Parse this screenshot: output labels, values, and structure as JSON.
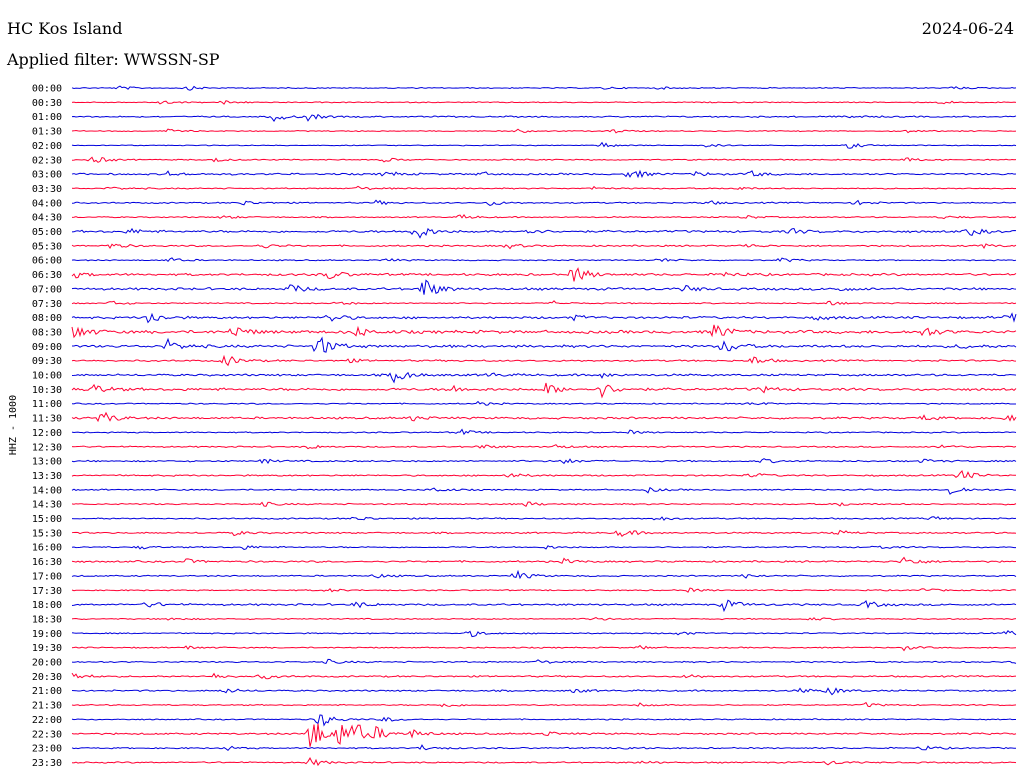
{
  "header": {
    "station": "HC Kos Island",
    "date": "2024-06-24",
    "filter": "Applied filter: WWSSN-SP"
  },
  "chart_data": {
    "type": "line",
    "ylabel": "HHZ - 1000",
    "colors": {
      "even": "#0000dd",
      "odd": "#ff0033"
    },
    "traces": [
      {
        "label": "00:00",
        "noise": 0.6,
        "events": [
          [
            0.05,
            2
          ],
          [
            0.12,
            2.5
          ],
          [
            0.56,
            1.5
          ],
          [
            0.62,
            1.2
          ],
          [
            0.93,
            2
          ]
        ]
      },
      {
        "label": "00:30",
        "noise": 0.6,
        "events": [
          [
            0.09,
            2.5
          ],
          [
            0.16,
            2
          ],
          [
            0.92,
            2
          ]
        ]
      },
      {
        "label": "01:00",
        "noise": 0.8,
        "events": [
          [
            0.21,
            6
          ],
          [
            0.25,
            3.5
          ],
          [
            0.82,
            2
          ]
        ]
      },
      {
        "label": "01:30",
        "noise": 0.6,
        "events": [
          [
            0.1,
            2
          ],
          [
            0.47,
            2
          ],
          [
            0.57,
            2.5
          ],
          [
            0.88,
            2
          ]
        ]
      },
      {
        "label": "02:00",
        "noise": 0.5,
        "events": [
          [
            0.56,
            3
          ],
          [
            0.67,
            2
          ],
          [
            0.82,
            4
          ]
        ]
      },
      {
        "label": "02:30",
        "noise": 0.7,
        "events": [
          [
            0.02,
            5
          ],
          [
            0.15,
            2
          ],
          [
            0.33,
            2
          ],
          [
            0.88,
            2.5
          ]
        ]
      },
      {
        "label": "03:00",
        "noise": 1.0,
        "events": [
          [
            0.1,
            3
          ],
          [
            0.33,
            3.5
          ],
          [
            0.43,
            2.5
          ],
          [
            0.59,
            6.5
          ],
          [
            0.66,
            2.5
          ],
          [
            0.72,
            3
          ]
        ]
      },
      {
        "label": "03:30",
        "noise": 0.7,
        "events": [
          [
            0.04,
            2
          ],
          [
            0.3,
            2.5
          ],
          [
            0.55,
            2
          ],
          [
            0.7,
            2.5
          ]
        ]
      },
      {
        "label": "04:00",
        "noise": 0.8,
        "events": [
          [
            0.18,
            2.5
          ],
          [
            0.32,
            2.5
          ],
          [
            0.44,
            3
          ],
          [
            0.67,
            2.5
          ],
          [
            0.83,
            2.5
          ]
        ]
      },
      {
        "label": "04:30",
        "noise": 0.7,
        "events": [
          [
            0.16,
            2
          ],
          [
            0.41,
            3
          ],
          [
            0.71,
            2.5
          ],
          [
            0.92,
            2
          ]
        ]
      },
      {
        "label": "05:00",
        "noise": 1.3,
        "events": [
          [
            0.06,
            3
          ],
          [
            0.36,
            12
          ],
          [
            0.48,
            3
          ],
          [
            0.76,
            3
          ],
          [
            0.95,
            4
          ]
        ]
      },
      {
        "label": "05:30",
        "noise": 0.9,
        "events": [
          [
            0.04,
            3
          ],
          [
            0.2,
            2.5
          ],
          [
            0.46,
            3
          ],
          [
            0.71,
            2.5
          ],
          [
            0.96,
            3
          ]
        ]
      },
      {
        "label": "06:00",
        "noise": 0.7,
        "events": [
          [
            0.1,
            3
          ],
          [
            0.33,
            2
          ],
          [
            0.62,
            2.5
          ],
          [
            0.75,
            2.5
          ]
        ]
      },
      {
        "label": "06:30",
        "noise": 1.3,
        "events": [
          [
            0.0,
            3.5
          ],
          [
            0.27,
            5
          ],
          [
            0.53,
            11
          ],
          [
            0.69,
            3
          ]
        ]
      },
      {
        "label": "07:00",
        "noise": 1.4,
        "events": [
          [
            0.23,
            5
          ],
          [
            0.37,
            14
          ],
          [
            0.65,
            3
          ],
          [
            0.81,
            2.5
          ]
        ]
      },
      {
        "label": "07:30",
        "noise": 0.7,
        "events": [
          [
            0.04,
            2.5
          ],
          [
            0.28,
            2
          ],
          [
            0.51,
            2
          ],
          [
            0.8,
            2.5
          ]
        ]
      },
      {
        "label": "08:00",
        "noise": 1.3,
        "events": [
          [
            0.08,
            7
          ],
          [
            0.27,
            6
          ],
          [
            0.53,
            2.5
          ],
          [
            0.79,
            2.5
          ],
          [
            0.99,
            8
          ]
        ]
      },
      {
        "label": "08:30",
        "noise": 1.8,
        "events": [
          [
            0.0,
            9
          ],
          [
            0.17,
            7
          ],
          [
            0.3,
            5
          ],
          [
            0.68,
            9
          ],
          [
            0.9,
            6
          ]
        ]
      },
      {
        "label": "09:00",
        "noise": 1.5,
        "events": [
          [
            0.1,
            7
          ],
          [
            0.26,
            13
          ],
          [
            0.69,
            8
          ],
          [
            0.94,
            2.5
          ]
        ]
      },
      {
        "label": "09:30",
        "noise": 1.0,
        "events": [
          [
            0.16,
            7
          ],
          [
            0.72,
            5
          ],
          [
            0.29,
            2
          ]
        ]
      },
      {
        "label": "10:00",
        "noise": 1.2,
        "events": [
          [
            0.34,
            9
          ],
          [
            0.44,
            2.5
          ],
          [
            0.56,
            2.5
          ]
        ]
      },
      {
        "label": "10:30",
        "noise": 1.5,
        "events": [
          [
            0.02,
            6
          ],
          [
            0.4,
            4
          ],
          [
            0.5,
            7
          ],
          [
            0.56,
            8
          ],
          [
            0.73,
            3
          ]
        ]
      },
      {
        "label": "11:00",
        "noise": 0.7,
        "events": [
          [
            0.43,
            2
          ],
          [
            0.72,
            2
          ]
        ]
      },
      {
        "label": "11:30",
        "noise": 1.2,
        "events": [
          [
            0.03,
            8
          ],
          [
            0.36,
            3
          ],
          [
            0.9,
            3
          ],
          [
            0.99,
            3
          ]
        ]
      },
      {
        "label": "12:00",
        "noise": 0.7,
        "events": [
          [
            0.41,
            3.5
          ],
          [
            0.59,
            2
          ]
        ]
      },
      {
        "label": "12:30",
        "noise": 0.8,
        "events": [
          [
            0.25,
            2.5
          ],
          [
            0.43,
            3
          ],
          [
            0.51,
            2.5
          ],
          [
            0.92,
            2.5
          ]
        ]
      },
      {
        "label": "13:00",
        "noise": 0.9,
        "events": [
          [
            0.2,
            2.5
          ],
          [
            0.52,
            3
          ],
          [
            0.73,
            2.5
          ],
          [
            0.9,
            2.5
          ]
        ]
      },
      {
        "label": "13:30",
        "noise": 0.9,
        "events": [
          [
            0.46,
            3
          ],
          [
            0.72,
            2.5
          ],
          [
            0.94,
            6
          ]
        ]
      },
      {
        "label": "14:00",
        "noise": 0.8,
        "events": [
          [
            0.38,
            3
          ],
          [
            0.61,
            2.5
          ],
          [
            0.93,
            6
          ]
        ]
      },
      {
        "label": "14:30",
        "noise": 0.8,
        "events": [
          [
            0.2,
            2.5
          ],
          [
            0.48,
            2.5
          ],
          [
            0.81,
            2.5
          ]
        ]
      },
      {
        "label": "15:00",
        "noise": 0.8,
        "events": [
          [
            0.3,
            2.5
          ],
          [
            0.62,
            2.5
          ],
          [
            0.91,
            2.5
          ]
        ]
      },
      {
        "label": "15:30",
        "noise": 0.9,
        "events": [
          [
            0.17,
            2.5
          ],
          [
            0.58,
            5
          ],
          [
            0.81,
            2.5
          ]
        ]
      },
      {
        "label": "16:00",
        "noise": 0.8,
        "events": [
          [
            0.07,
            2
          ],
          [
            0.18,
            2.5
          ],
          [
            0.5,
            2
          ],
          [
            0.85,
            2.5
          ]
        ]
      },
      {
        "label": "16:30",
        "noise": 1.0,
        "events": [
          [
            0.12,
            2.5
          ],
          [
            0.52,
            2.5
          ],
          [
            0.88,
            6
          ]
        ]
      },
      {
        "label": "17:00",
        "noise": 0.8,
        "events": [
          [
            0.47,
            5
          ],
          [
            0.32,
            2.5
          ],
          [
            0.71,
            2.5
          ]
        ]
      },
      {
        "label": "17:30",
        "noise": 0.7,
        "events": [
          [
            0.27,
            2
          ],
          [
            0.65,
            2.5
          ],
          [
            0.9,
            2
          ]
        ]
      },
      {
        "label": "18:00",
        "noise": 1.1,
        "events": [
          [
            0.08,
            3
          ],
          [
            0.3,
            3
          ],
          [
            0.69,
            6
          ],
          [
            0.84,
            4
          ]
        ]
      },
      {
        "label": "18:30",
        "noise": 0.7,
        "events": [
          [
            0.1,
            2
          ],
          [
            0.55,
            2
          ],
          [
            0.78,
            2
          ]
        ]
      },
      {
        "label": "19:00",
        "noise": 0.7,
        "events": [
          [
            0.42,
            4
          ],
          [
            0.64,
            2.5
          ],
          [
            0.99,
            3
          ]
        ]
      },
      {
        "label": "19:30",
        "noise": 0.7,
        "events": [
          [
            0.12,
            2
          ],
          [
            0.6,
            2
          ],
          [
            0.88,
            2.5
          ]
        ]
      },
      {
        "label": "20:00",
        "noise": 0.8,
        "events": [
          [
            0.27,
            2.5
          ],
          [
            0.49,
            2.5
          ],
          [
            0.99,
            4
          ]
        ]
      },
      {
        "label": "20:30",
        "noise": 0.9,
        "events": [
          [
            0.0,
            4
          ],
          [
            0.15,
            3
          ],
          [
            0.2,
            3
          ],
          [
            0.65,
            2.5
          ]
        ]
      },
      {
        "label": "21:00",
        "noise": 0.9,
        "events": [
          [
            0.16,
            3
          ],
          [
            0.53,
            2.5
          ],
          [
            0.8,
            5
          ],
          [
            0.77,
            2.5
          ]
        ]
      },
      {
        "label": "21:30",
        "noise": 0.7,
        "events": [
          [
            0.39,
            3
          ],
          [
            0.6,
            2.5
          ],
          [
            0.84,
            2.5
          ]
        ]
      },
      {
        "label": "22:00",
        "noise": 0.7,
        "events": [
          [
            0.26,
            10
          ],
          [
            0.33,
            3
          ]
        ]
      },
      {
        "label": "22:30",
        "noise": 1.0,
        "events": [
          [
            0.25,
            24
          ],
          [
            0.28,
            16
          ],
          [
            0.3,
            9
          ],
          [
            0.32,
            6
          ],
          [
            0.36,
            4
          ],
          [
            0.5,
            2.5
          ]
        ]
      },
      {
        "label": "23:00",
        "noise": 0.8,
        "events": [
          [
            0.16,
            2.5
          ],
          [
            0.37,
            3
          ],
          [
            0.58,
            2
          ],
          [
            0.9,
            2.5
          ]
        ]
      },
      {
        "label": "23:30",
        "noise": 0.8,
        "events": [
          [
            0.25,
            5
          ],
          [
            0.6,
            2
          ],
          [
            0.8,
            2.5
          ]
        ]
      }
    ]
  }
}
